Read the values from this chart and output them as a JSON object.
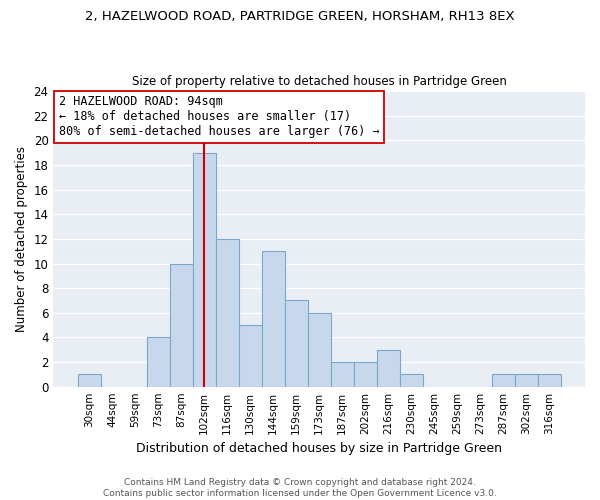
{
  "title": "2, HAZELWOOD ROAD, PARTRIDGE GREEN, HORSHAM, RH13 8EX",
  "subtitle": "Size of property relative to detached houses in Partridge Green",
  "xlabel": "Distribution of detached houses by size in Partridge Green",
  "ylabel": "Number of detached properties",
  "bin_labels": [
    "30sqm",
    "44sqm",
    "59sqm",
    "73sqm",
    "87sqm",
    "102sqm",
    "116sqm",
    "130sqm",
    "144sqm",
    "159sqm",
    "173sqm",
    "187sqm",
    "202sqm",
    "216sqm",
    "230sqm",
    "245sqm",
    "259sqm",
    "273sqm",
    "287sqm",
    "302sqm",
    "316sqm"
  ],
  "bar_heights": [
    1,
    0,
    0,
    4,
    10,
    19,
    12,
    5,
    11,
    7,
    6,
    2,
    2,
    3,
    1,
    0,
    0,
    0,
    1,
    1,
    1
  ],
  "bar_color": "#c8d8ec",
  "bar_edge_color": "#7aa8cc",
  "vline_color": "#cc0000",
  "annotation_text_line1": "2 HAZELWOOD ROAD: 94sqm",
  "annotation_text_line2": "← 18% of detached houses are smaller (17)",
  "annotation_text_line3": "80% of semi-detached houses are larger (76) →",
  "annotation_box_color": "white",
  "annotation_box_edge": "#cc0000",
  "ylim": [
    0,
    24
  ],
  "yticks": [
    0,
    2,
    4,
    6,
    8,
    10,
    12,
    14,
    16,
    18,
    20,
    22,
    24
  ],
  "footer_line1": "Contains HM Land Registry data © Crown copyright and database right 2024.",
  "footer_line2": "Contains public sector information licensed under the Open Government Licence v3.0.",
  "bg_color": "#e8eef4",
  "grid_color": "white"
}
